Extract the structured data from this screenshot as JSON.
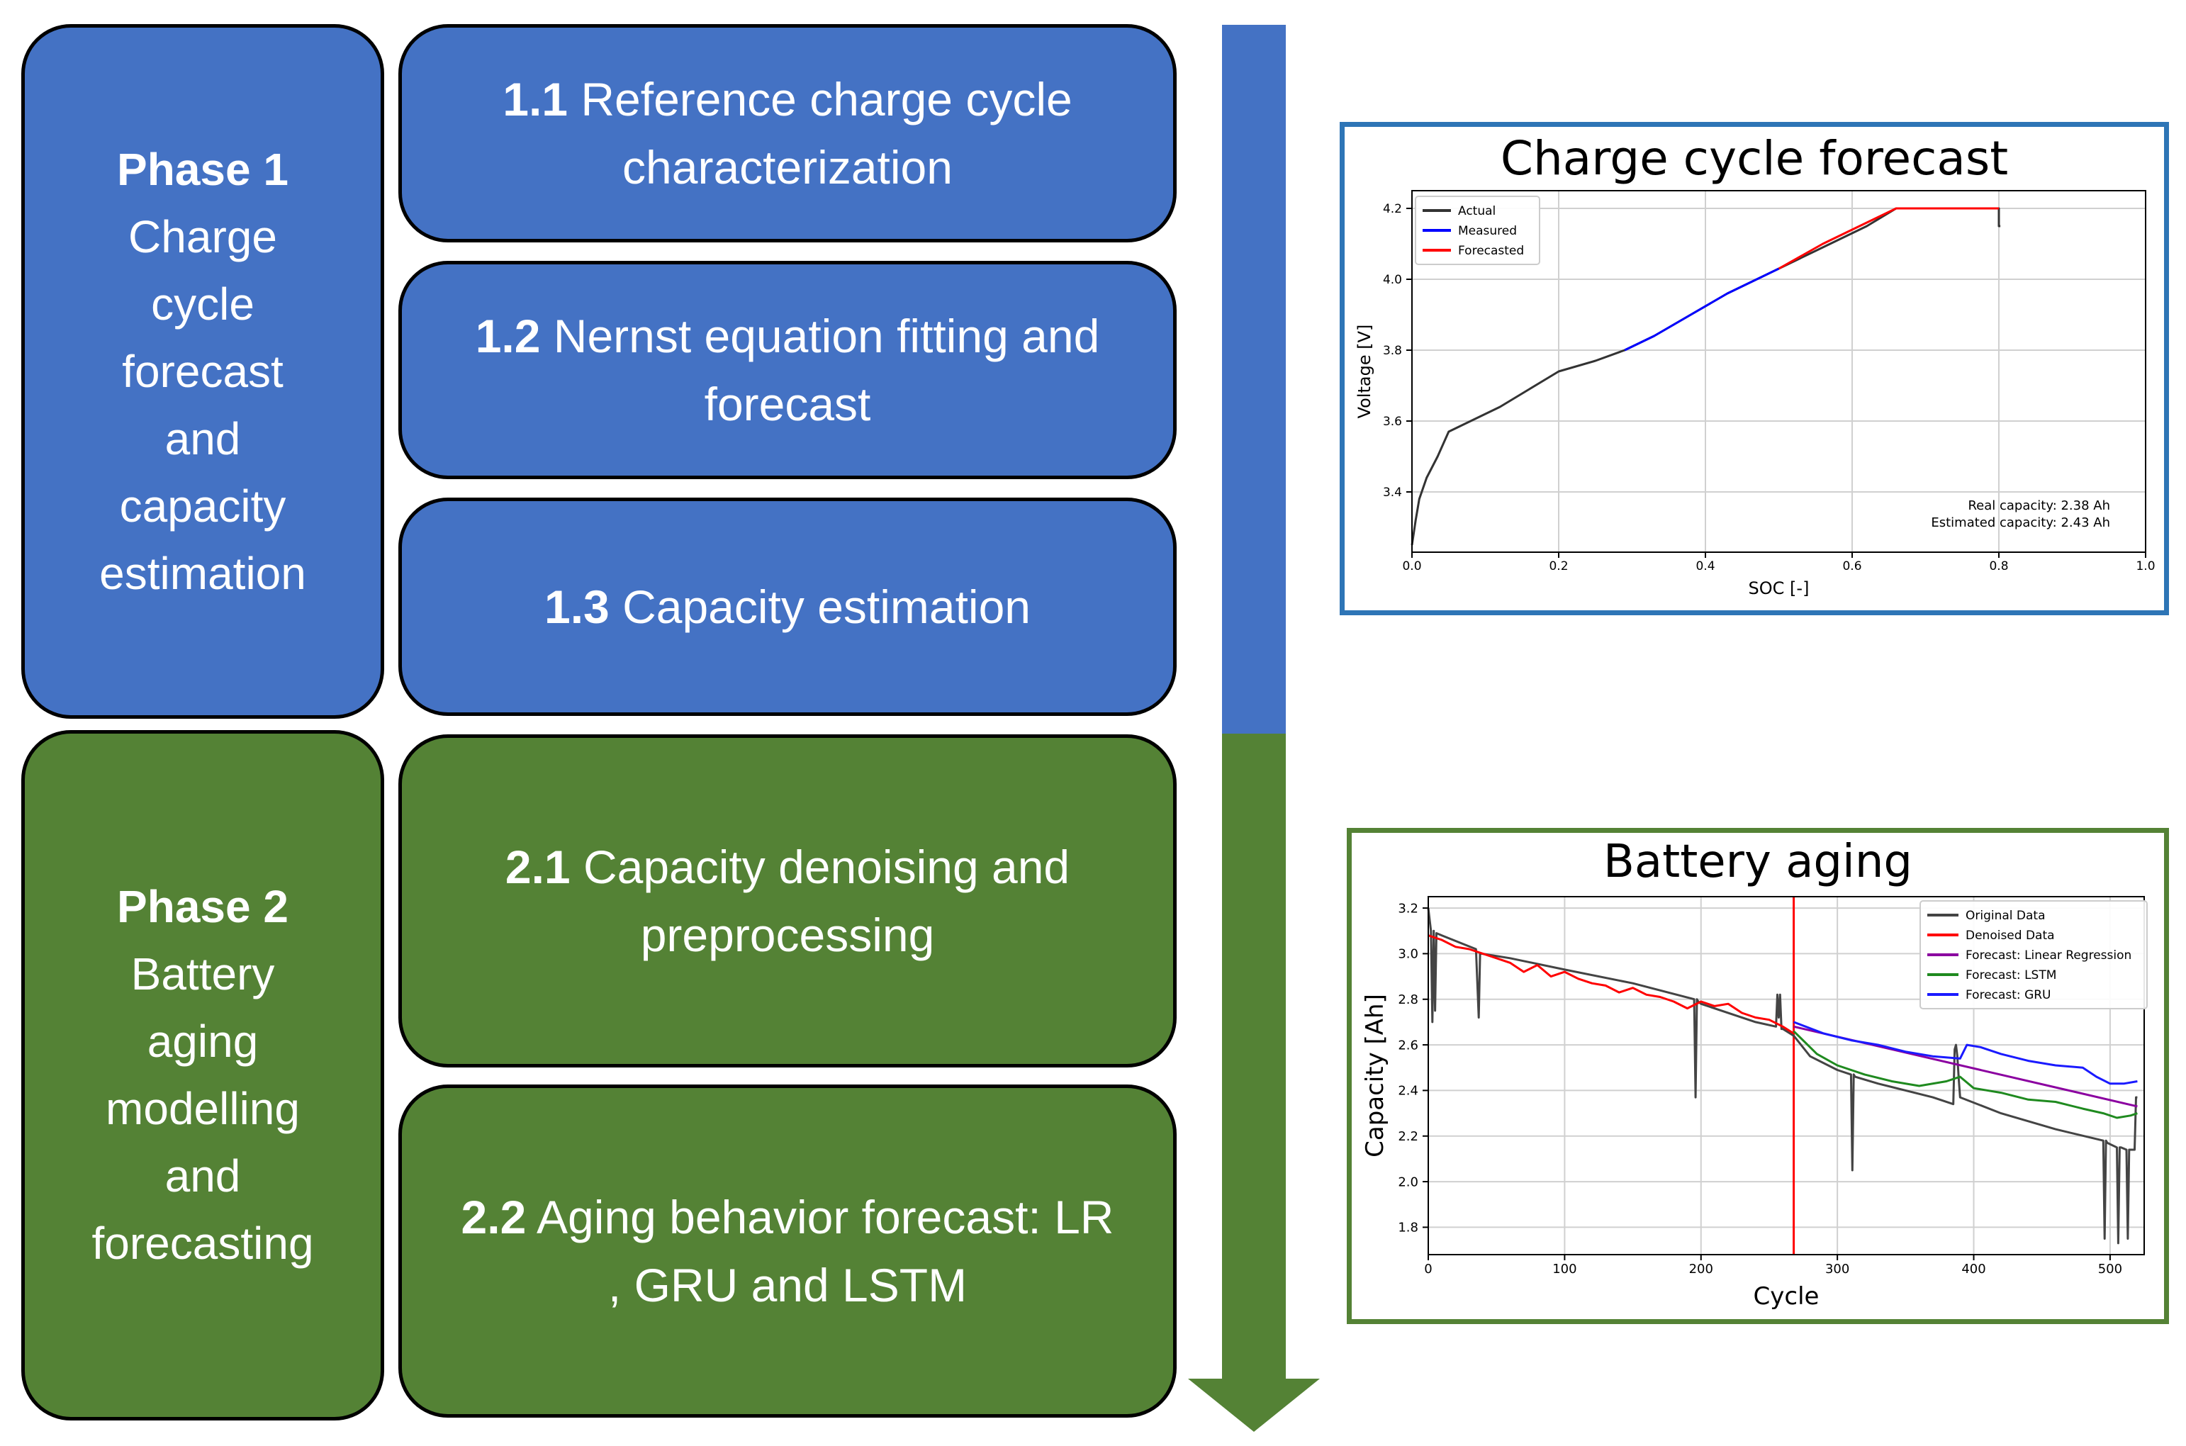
{
  "phases": [
    {
      "title": "Phase 1",
      "lines": [
        "Charge",
        "cycle",
        "forecast",
        "and",
        "capacity",
        "estimation"
      ],
      "color": "#4472c4"
    },
    {
      "title": "Phase 2",
      "lines": [
        "Battery",
        "aging",
        "modelling",
        "and",
        "forecasting"
      ],
      "color": "#548235"
    }
  ],
  "steps": [
    {
      "num": "1.1",
      "text": "Reference charge cycle characterization"
    },
    {
      "num": "1.2",
      "text": "Nernst equation fitting and forecast"
    },
    {
      "num": "1.3",
      "text": "Capacity estimation"
    },
    {
      "num": "2.1",
      "text": "Capacity denoising and preprocessing"
    },
    {
      "num": "2.2",
      "text": "Aging behavior forecast: LR , GRU and LSTM"
    }
  ],
  "chart_data": [
    {
      "type": "line",
      "title": "Charge cycle forecast",
      "xlabel": "SOC [-]",
      "ylabel": "Voltage [V]",
      "xlim": [
        0.0,
        1.0
      ],
      "ylim": [
        3.23,
        4.25
      ],
      "xticks": [
        "0.0",
        "0.2",
        "0.4",
        "0.6",
        "0.8",
        "1.0"
      ],
      "yticks": [
        "3.4",
        "3.6",
        "3.8",
        "4.0",
        "4.2"
      ],
      "grid": true,
      "legend_position": "top-left",
      "annotations": [
        "Real capacity: 2.38 Ah",
        "Estimated capacity: 2.43 Ah"
      ],
      "series": [
        {
          "name": "Actual",
          "color": "#333333",
          "x": [
            0.0,
            0.005,
            0.01,
            0.02,
            0.035,
            0.05,
            0.08,
            0.12,
            0.16,
            0.2,
            0.25,
            0.29,
            0.33,
            0.38,
            0.43,
            0.5,
            0.56,
            0.62,
            0.66,
            0.7,
            0.75,
            0.8,
            0.8,
            0.802
          ],
          "y": [
            3.25,
            3.32,
            3.38,
            3.44,
            3.5,
            3.57,
            3.6,
            3.64,
            3.69,
            3.74,
            3.77,
            3.8,
            3.84,
            3.9,
            3.96,
            4.03,
            4.09,
            4.15,
            4.2,
            4.2,
            4.2,
            4.2,
            4.15,
            4.15
          ]
        },
        {
          "name": "Measured",
          "color": "#0000ff",
          "x": [
            0.29,
            0.33,
            0.38,
            0.43,
            0.5
          ],
          "y": [
            3.8,
            3.84,
            3.9,
            3.96,
            4.03
          ]
        },
        {
          "name": "Forecasted",
          "color": "#ff0000",
          "x": [
            0.5,
            0.56,
            0.62,
            0.66,
            0.7,
            0.75,
            0.8
          ],
          "y": [
            4.03,
            4.1,
            4.16,
            4.2,
            4.2,
            4.2,
            4.2
          ]
        }
      ]
    },
    {
      "type": "line",
      "title": "Battery aging",
      "xlabel": "Cycle",
      "ylabel": "Capacity [Ah]",
      "xlim": [
        0,
        525
      ],
      "ylim": [
        1.68,
        3.25
      ],
      "xticks": [
        "0",
        "100",
        "200",
        "300",
        "400",
        "500"
      ],
      "yticks": [
        "1.8",
        "2.0",
        "2.2",
        "2.4",
        "2.6",
        "2.8",
        "3.0",
        "3.2"
      ],
      "grid": true,
      "legend_position": "top-right",
      "vertical_line_x": 268,
      "series": [
        {
          "name": "Original Data",
          "color": "#444444",
          "x": [
            0,
            2,
            3,
            4,
            5,
            6,
            10,
            35,
            37,
            38,
            39,
            60,
            100,
            150,
            195,
            196,
            197,
            198,
            200,
            240,
            255,
            256,
            257,
            258,
            259,
            260,
            268,
            280,
            300,
            310,
            311,
            312,
            313,
            330,
            370,
            385,
            386,
            387,
            388,
            389,
            390,
            420,
            460,
            495,
            496,
            497,
            498,
            505,
            506,
            507,
            508,
            512,
            513,
            514,
            515,
            518,
            519,
            520
          ],
          "y": [
            3.2,
            3.1,
            2.7,
            3.1,
            2.75,
            3.09,
            3.08,
            3.02,
            2.72,
            3.0,
            3.0,
            2.98,
            2.93,
            2.87,
            2.8,
            2.37,
            2.8,
            2.79,
            2.78,
            2.7,
            2.68,
            2.82,
            2.72,
            2.82,
            2.67,
            2.67,
            2.64,
            2.55,
            2.49,
            2.47,
            2.05,
            2.47,
            2.46,
            2.43,
            2.37,
            2.34,
            2.58,
            2.6,
            2.55,
            2.45,
            2.37,
            2.3,
            2.23,
            2.18,
            1.75,
            2.18,
            2.17,
            2.15,
            1.73,
            2.15,
            2.15,
            2.14,
            1.75,
            2.14,
            2.14,
            2.14,
            2.37,
            2.37
          ]
        },
        {
          "name": "Denoised Data",
          "color": "#ff0000",
          "x": [
            0,
            10,
            20,
            30,
            40,
            50,
            60,
            70,
            80,
            90,
            100,
            110,
            120,
            130,
            140,
            150,
            160,
            170,
            180,
            190,
            200,
            210,
            220,
            230,
            240,
            250,
            260,
            268
          ],
          "y": [
            3.08,
            3.06,
            3.03,
            3.02,
            3.0,
            2.98,
            2.96,
            2.92,
            2.95,
            2.9,
            2.92,
            2.89,
            2.87,
            2.86,
            2.83,
            2.85,
            2.82,
            2.81,
            2.79,
            2.76,
            2.79,
            2.77,
            2.78,
            2.74,
            2.72,
            2.71,
            2.68,
            2.65
          ]
        },
        {
          "name": "Forecast: Linear Regression",
          "color": "#8b00a0",
          "x": [
            268,
            520
          ],
          "y": [
            2.68,
            2.33
          ]
        },
        {
          "name": "Forecast: LSTM",
          "color": "#1f8a1f",
          "x": [
            268,
            285,
            300,
            320,
            340,
            360,
            380,
            390,
            400,
            420,
            440,
            460,
            480,
            495,
            505,
            515,
            520
          ],
          "y": [
            2.66,
            2.56,
            2.51,
            2.47,
            2.44,
            2.42,
            2.44,
            2.46,
            2.41,
            2.39,
            2.36,
            2.35,
            2.32,
            2.3,
            2.28,
            2.29,
            2.3
          ]
        },
        {
          "name": "Forecast: GRU",
          "color": "#1a1aff",
          "x": [
            268,
            290,
            310,
            330,
            350,
            370,
            390,
            395,
            405,
            420,
            440,
            460,
            480,
            490,
            500,
            510,
            520
          ],
          "y": [
            2.7,
            2.65,
            2.62,
            2.6,
            2.57,
            2.55,
            2.54,
            2.6,
            2.59,
            2.56,
            2.53,
            2.51,
            2.5,
            2.46,
            2.43,
            2.43,
            2.44
          ]
        }
      ]
    }
  ]
}
